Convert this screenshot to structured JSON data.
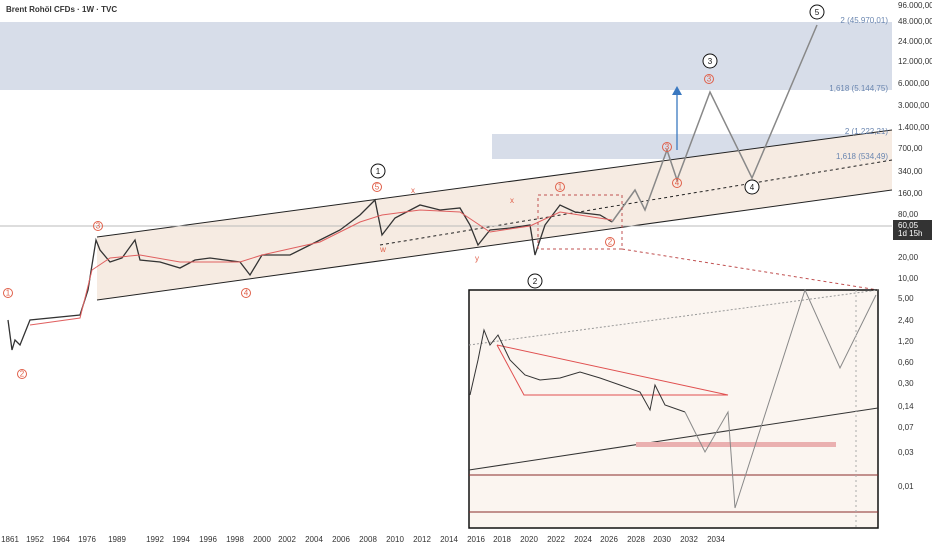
{
  "header": {
    "title": "Brent Rohöl CFDs · 1W · TVC"
  },
  "price_axis": {
    "labels": [
      "96.000,00",
      "48.000,00",
      "24.000,00",
      "12.000,00",
      "6.000,00",
      "3.000,00",
      "1.400,00",
      "700,00",
      "340,00",
      "160,00",
      "80,00",
      "20,00",
      "10,00",
      "5,00",
      "2,40",
      "1,20",
      "0,60",
      "0,30",
      "0,14",
      "0,07",
      "0,03",
      "0,01"
    ]
  },
  "price_tag": {
    "price": "60,05",
    "countdown": "1d 15h"
  },
  "time_axis": {
    "labels": [
      "1861",
      "1952",
      "1964",
      "1976",
      "1989",
      "1992",
      "1994",
      "1996",
      "1998",
      "2000",
      "2002",
      "2004",
      "2006",
      "2008",
      "2010",
      "2012",
      "2014",
      "2016",
      "2018",
      "2020",
      "2022",
      "2024",
      "2026",
      "2028",
      "2030",
      "2032",
      "2034"
    ]
  },
  "fib_levels": [
    "2 (45.970,01)",
    "1,618 (5.144,75)",
    "2 (1.222,21)",
    "1,618 (534,49)"
  ],
  "primary_waves": [
    "1",
    "2",
    "3",
    "4",
    "5"
  ],
  "minor_waves": [
    "1",
    "2",
    "3",
    "4",
    "5",
    "1",
    "2",
    "3",
    "4",
    "3"
  ],
  "corrective_labels": [
    "x",
    "w",
    "x",
    "y"
  ]
}
